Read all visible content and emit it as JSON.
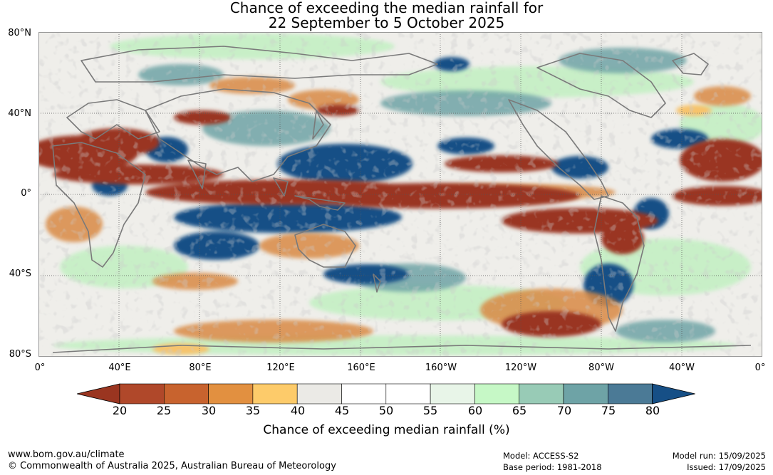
{
  "title": {
    "line1": "Chance of exceeding the median rainfall for",
    "line2": "22 September to 5 October 2025"
  },
  "map": {
    "lat_labels": [
      "80°N",
      "40°N",
      "0°",
      "40°S",
      "80°S"
    ],
    "lon_labels": [
      "0°",
      "40°E",
      "80°E",
      "120°E",
      "160°E",
      "160°W",
      "120°W",
      "80°W",
      "40°W",
      "0°"
    ],
    "colors": {
      "very_dry": "#9a3520",
      "dry": "#c8682e",
      "mild_dry": "#f0b96a",
      "neutral": "#e8e6e2",
      "mild_wet": "#c4f0c4",
      "wet": "#6fa4a6",
      "very_wet": "#164f86",
      "land_outline": "#7a7a7a"
    }
  },
  "colorbar": {
    "ticks": [
      "20",
      "25",
      "30",
      "35",
      "40",
      "45",
      "50",
      "55",
      "60",
      "65",
      "70",
      "75",
      "80"
    ],
    "colors": [
      "#9a3520",
      "#b0482a",
      "#c8632e",
      "#e29040",
      "#fdcb6a",
      "#ebeae6",
      "#ffffff",
      "#ffffff",
      "#e8f5e8",
      "#c6f8c6",
      "#98cbb6",
      "#6ea3a6",
      "#4b7a96",
      "#164f86"
    ],
    "label": "Chance of exceeding median rainfall (%)"
  },
  "footer": {
    "url": "www.bom.gov.au/climate",
    "copyright": "© Commonwealth of Australia 2025, Australian Bureau of Meteorology",
    "model": "Model: ACCESS-S2",
    "base_period": "Base period: 1981-2018",
    "model_run": "Model run: 15/09/2025",
    "issued": "Issued: 17/09/2025"
  }
}
